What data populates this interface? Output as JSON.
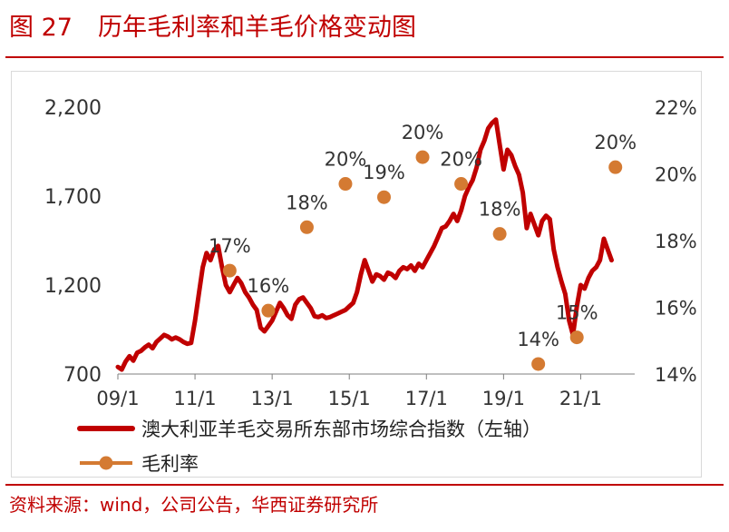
{
  "page": {
    "figure_number": "图 27",
    "title": "历年毛利率和羊毛价格变动图",
    "source": "资料来源：wind，公司公告，华西证券研究所"
  },
  "chart_data": {
    "type": "line",
    "x_tick_labels": [
      "09/1",
      "11/1",
      "13/1",
      "15/1",
      "17/1",
      "19/1",
      "21/1"
    ],
    "x_range": [
      2009.0,
      2022.4
    ],
    "y_left": {
      "range": [
        700,
        2200
      ],
      "ticks": [
        700,
        1200,
        1700,
        2200
      ],
      "tick_labels": [
        "700",
        "1,200",
        "1,700",
        "2,200"
      ]
    },
    "y_right": {
      "range": [
        14,
        22
      ],
      "ticks": [
        14,
        16,
        18,
        20,
        22
      ],
      "tick_labels": [
        "14%",
        "16%",
        "18%",
        "20%",
        "22%"
      ]
    },
    "grid": false,
    "legend_position": "bottom-left",
    "series": [
      {
        "name": "澳大利亚羊毛交易所东部市场综合指数（左轴）",
        "axis": "left",
        "kind": "line",
        "color": "#c00000",
        "points": [
          [
            2009.0,
            740
          ],
          [
            2009.1,
            725
          ],
          [
            2009.2,
            770
          ],
          [
            2009.3,
            800
          ],
          [
            2009.4,
            775
          ],
          [
            2009.5,
            820
          ],
          [
            2009.6,
            830
          ],
          [
            2009.7,
            850
          ],
          [
            2009.8,
            865
          ],
          [
            2009.9,
            845
          ],
          [
            2010.0,
            880
          ],
          [
            2010.1,
            900
          ],
          [
            2010.2,
            920
          ],
          [
            2010.3,
            910
          ],
          [
            2010.4,
            895
          ],
          [
            2010.5,
            905
          ],
          [
            2010.6,
            895
          ],
          [
            2010.7,
            880
          ],
          [
            2010.8,
            870
          ],
          [
            2010.9,
            875
          ],
          [
            2011.0,
            1000
          ],
          [
            2011.1,
            1150
          ],
          [
            2011.2,
            1300
          ],
          [
            2011.3,
            1380
          ],
          [
            2011.4,
            1340
          ],
          [
            2011.5,
            1400
          ],
          [
            2011.6,
            1420
          ],
          [
            2011.7,
            1300
          ],
          [
            2011.8,
            1200
          ],
          [
            2011.9,
            1160
          ],
          [
            2012.0,
            1200
          ],
          [
            2012.1,
            1240
          ],
          [
            2012.2,
            1210
          ],
          [
            2012.3,
            1160
          ],
          [
            2012.4,
            1130
          ],
          [
            2012.5,
            1090
          ],
          [
            2012.6,
            1060
          ],
          [
            2012.7,
            960
          ],
          [
            2012.8,
            940
          ],
          [
            2012.9,
            970
          ],
          [
            2013.0,
            1000
          ],
          [
            2013.1,
            1050
          ],
          [
            2013.2,
            1100
          ],
          [
            2013.3,
            1070
          ],
          [
            2013.4,
            1030
          ],
          [
            2013.5,
            1010
          ],
          [
            2013.6,
            1090
          ],
          [
            2013.7,
            1120
          ],
          [
            2013.8,
            1130
          ],
          [
            2013.9,
            1100
          ],
          [
            2014.0,
            1070
          ],
          [
            2014.1,
            1025
          ],
          [
            2014.2,
            1020
          ],
          [
            2014.3,
            1030
          ],
          [
            2014.4,
            1015
          ],
          [
            2014.5,
            1020
          ],
          [
            2014.6,
            1030
          ],
          [
            2014.7,
            1040
          ],
          [
            2014.8,
            1050
          ],
          [
            2014.9,
            1060
          ],
          [
            2015.0,
            1080
          ],
          [
            2015.1,
            1100
          ],
          [
            2015.2,
            1160
          ],
          [
            2015.3,
            1260
          ],
          [
            2015.4,
            1340
          ],
          [
            2015.5,
            1280
          ],
          [
            2015.6,
            1220
          ],
          [
            2015.7,
            1260
          ],
          [
            2015.8,
            1250
          ],
          [
            2015.9,
            1230
          ],
          [
            2016.0,
            1270
          ],
          [
            2016.1,
            1260
          ],
          [
            2016.2,
            1240
          ],
          [
            2016.3,
            1280
          ],
          [
            2016.4,
            1300
          ],
          [
            2016.5,
            1290
          ],
          [
            2016.6,
            1310
          ],
          [
            2016.7,
            1280
          ],
          [
            2016.8,
            1320
          ],
          [
            2016.9,
            1300
          ],
          [
            2017.0,
            1340
          ],
          [
            2017.1,
            1380
          ],
          [
            2017.2,
            1420
          ],
          [
            2017.3,
            1470
          ],
          [
            2017.4,
            1520
          ],
          [
            2017.5,
            1530
          ],
          [
            2017.6,
            1560
          ],
          [
            2017.7,
            1600
          ],
          [
            2017.8,
            1560
          ],
          [
            2017.9,
            1620
          ],
          [
            2018.0,
            1700
          ],
          [
            2018.1,
            1750
          ],
          [
            2018.2,
            1790
          ],
          [
            2018.3,
            1860
          ],
          [
            2018.4,
            1960
          ],
          [
            2018.5,
            2010
          ],
          [
            2018.6,
            2080
          ],
          [
            2018.7,
            2110
          ],
          [
            2018.8,
            2130
          ],
          [
            2018.9,
            1990
          ],
          [
            2019.0,
            1850
          ],
          [
            2019.1,
            1960
          ],
          [
            2019.2,
            1930
          ],
          [
            2019.3,
            1870
          ],
          [
            2019.4,
            1820
          ],
          [
            2019.5,
            1720
          ],
          [
            2019.6,
            1520
          ],
          [
            2019.7,
            1600
          ],
          [
            2019.8,
            1540
          ],
          [
            2019.9,
            1480
          ],
          [
            2020.0,
            1560
          ],
          [
            2020.1,
            1590
          ],
          [
            2020.2,
            1570
          ],
          [
            2020.3,
            1400
          ],
          [
            2020.4,
            1300
          ],
          [
            2020.5,
            1220
          ],
          [
            2020.6,
            1150
          ],
          [
            2020.7,
            1000
          ],
          [
            2020.8,
            920
          ],
          [
            2020.9,
            1080
          ],
          [
            2021.0,
            1200
          ],
          [
            2021.1,
            1180
          ],
          [
            2021.2,
            1240
          ],
          [
            2021.3,
            1280
          ],
          [
            2021.4,
            1300
          ],
          [
            2021.5,
            1340
          ],
          [
            2021.6,
            1460
          ],
          [
            2021.7,
            1400
          ],
          [
            2021.8,
            1340
          ]
        ]
      },
      {
        "name": "毛利率",
        "axis": "right",
        "kind": "points",
        "color": "#d47a32",
        "points": [
          {
            "x": 2011.9,
            "y": 17.1,
            "label": "17%"
          },
          {
            "x": 2012.9,
            "y": 15.9,
            "label": "16%"
          },
          {
            "x": 2013.9,
            "y": 18.4,
            "label": "18%"
          },
          {
            "x": 2014.9,
            "y": 19.7,
            "label": "20%"
          },
          {
            "x": 2015.9,
            "y": 19.3,
            "label": "19%"
          },
          {
            "x": 2016.9,
            "y": 20.5,
            "label": "20%"
          },
          {
            "x": 2017.9,
            "y": 19.7,
            "label": "20%"
          },
          {
            "x": 2018.9,
            "y": 18.2,
            "label": "18%"
          },
          {
            "x": 2019.9,
            "y": 14.3,
            "label": "14%"
          },
          {
            "x": 2020.9,
            "y": 15.1,
            "label": "15%"
          },
          {
            "x": 2021.9,
            "y": 20.2,
            "label": "20%"
          }
        ]
      }
    ]
  }
}
